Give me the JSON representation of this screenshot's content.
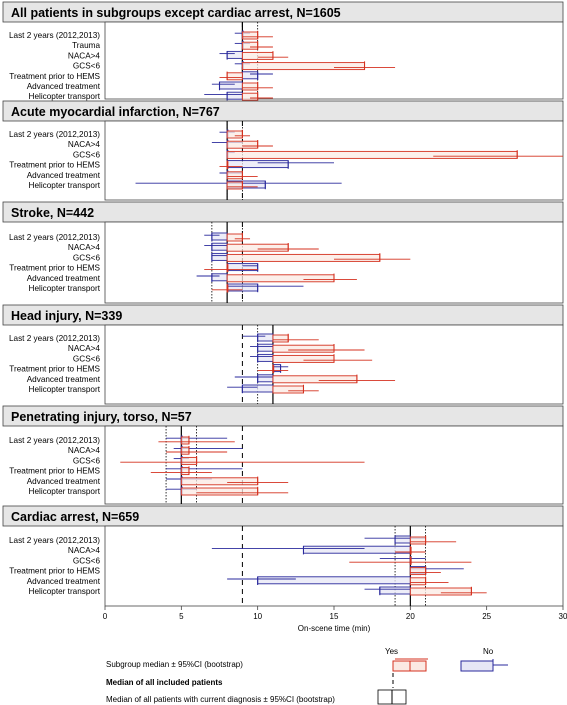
{
  "chart_data": {
    "type": "forest",
    "xlabel": "On-scene time (min)",
    "xlim": [
      0,
      30
    ],
    "xticks": [
      0,
      5,
      10,
      15,
      20,
      25,
      30
    ],
    "overall_median": 9,
    "colors": {
      "yes": "#d4311f",
      "yes_fill": "#fbe9e3",
      "no": "#2a2a9c",
      "no_fill": "#e7e7f6"
    },
    "panels": [
      {
        "title": "All patients in subgroups except cardiac arrest, N=1605",
        "median": 9,
        "ci": [
          9,
          10
        ],
        "rows": [
          {
            "label": "Last 2 years (2012,2013)",
            "yes": {
              "median": 10,
              "lo": 9,
              "hi": 11
            },
            "no": {
              "median": 9,
              "lo": 8.5,
              "hi": 9.5
            }
          },
          {
            "label": "Trauma",
            "yes": {
              "median": 10,
              "lo": 9.5,
              "hi": 11
            },
            "no": {
              "median": 9,
              "lo": 8.5,
              "hi": 9.5
            }
          },
          {
            "label": "NACA>4",
            "yes": {
              "median": 11,
              "lo": 10,
              "hi": 12
            },
            "no": {
              "median": 8,
              "lo": 7.5,
              "hi": 8.5
            }
          },
          {
            "label": "GCS<6",
            "yes": {
              "median": 17,
              "lo": 15,
              "hi": 19
            },
            "no": {
              "median": 9,
              "lo": 8.5,
              "hi": 9.5
            }
          },
          {
            "label": "Treatment prior to HEMS",
            "yes": {
              "median": 8,
              "lo": 7.5,
              "hi": 9
            },
            "no": {
              "median": 10,
              "lo": 9.5,
              "hi": 11
            }
          },
          {
            "label": "Advanced treatment",
            "yes": {
              "median": 10,
              "lo": 9,
              "hi": 11
            },
            "no": {
              "median": 7.5,
              "lo": 7,
              "hi": 8.5
            }
          },
          {
            "label": "Helicopter transport",
            "yes": {
              "median": 10,
              "lo": 9.5,
              "hi": 11
            },
            "no": {
              "median": 8,
              "lo": 6.5,
              "hi": 9
            }
          }
        ]
      },
      {
        "title": "Acute myocardial infarction, N=767",
        "median": 8,
        "ci": [
          8,
          9
        ],
        "rows": [
          {
            "label": "Last 2 years (2012,2013)",
            "yes": {
              "median": 9,
              "lo": 8.5,
              "hi": 9.5
            },
            "no": {
              "median": 8,
              "lo": 7.5,
              "hi": 8.5
            }
          },
          {
            "label": "NACA>4",
            "yes": {
              "median": 10,
              "lo": 9,
              "hi": 11
            },
            "no": {
              "median": 8,
              "lo": 7,
              "hi": 9
            }
          },
          {
            "label": "GCS<6",
            "yes": {
              "median": 27,
              "lo": 21.5,
              "hi": 30
            },
            "no": {
              "median": 8,
              "lo": 8,
              "hi": 8.5
            }
          },
          {
            "label": "Treatment prior to HEMS",
            "yes": {
              "median": 8,
              "lo": 7.5,
              "hi": 9
            },
            "no": {
              "median": 12,
              "lo": 10,
              "hi": 15
            }
          },
          {
            "label": "Advanced treatment",
            "yes": {
              "median": 9,
              "lo": 8,
              "hi": 10
            },
            "no": {
              "median": 8,
              "lo": 7.5,
              "hi": 9
            }
          },
          {
            "label": "Helicopter transport",
            "yes": {
              "median": 9,
              "lo": 8,
              "hi": 10
            },
            "no": {
              "median": 10.5,
              "lo": 2,
              "hi": 15.5
            }
          }
        ]
      },
      {
        "title": "Stroke, N=442",
        "median": 8,
        "ci": [
          7,
          9
        ],
        "rows": [
          {
            "label": "Last 2 years (2012,2013)",
            "yes": {
              "median": 9,
              "lo": 8.5,
              "hi": 9.5
            },
            "no": {
              "median": 7,
              "lo": 6.5,
              "hi": 7.5
            }
          },
          {
            "label": "NACA>4",
            "yes": {
              "median": 12,
              "lo": 10,
              "hi": 14
            },
            "no": {
              "median": 7,
              "lo": 6.5,
              "hi": 8
            }
          },
          {
            "label": "GCS<6",
            "yes": {
              "median": 18,
              "lo": 15,
              "hi": 20
            },
            "no": {
              "median": 7,
              "lo": 7,
              "hi": 8
            }
          },
          {
            "label": "Treatment prior to HEMS",
            "yes": {
              "median": 8,
              "lo": 6.5,
              "hi": 10
            },
            "no": {
              "median": 10,
              "lo": 9,
              "hi": 10
            }
          },
          {
            "label": "Advanced treatment",
            "yes": {
              "median": 15,
              "lo": 13,
              "hi": 16.5
            },
            "no": {
              "median": 7,
              "lo": 6,
              "hi": 7.5
            }
          },
          {
            "label": "Helicopter transport",
            "yes": {
              "median": 8,
              "lo": 7,
              "hi": 9
            },
            "no": {
              "median": 10,
              "lo": 8,
              "hi": 13
            }
          }
        ]
      },
      {
        "title": "Head injury, N=339",
        "median": 11,
        "ci": [
          10,
          11
        ],
        "rows": [
          {
            "label": "Last 2 years (2012,2013)",
            "yes": {
              "median": 12,
              "lo": 11,
              "hi": 14
            },
            "no": {
              "median": 10,
              "lo": 9,
              "hi": 10.5
            }
          },
          {
            "label": "NACA>4",
            "yes": {
              "median": 15,
              "lo": 12,
              "hi": 17
            },
            "no": {
              "median": 10,
              "lo": 9.5,
              "hi": 11
            }
          },
          {
            "label": "GCS<6",
            "yes": {
              "median": 15,
              "lo": 13,
              "hi": 17.5
            },
            "no": {
              "median": 10,
              "lo": 9.5,
              "hi": 11
            }
          },
          {
            "label": "Treatment prior to HEMS",
            "yes": {
              "median": 11,
              "lo": 10,
              "hi": 12
            },
            "no": {
              "median": 11.5,
              "lo": 11,
              "hi": 12
            }
          },
          {
            "label": "Advanced treatment",
            "yes": {
              "median": 16.5,
              "lo": 14,
              "hi": 19
            },
            "no": {
              "median": 10,
              "lo": 8.5,
              "hi": 11
            }
          },
          {
            "label": "Helicopter transport",
            "yes": {
              "median": 13,
              "lo": 12,
              "hi": 14
            },
            "no": {
              "median": 9,
              "lo": 8,
              "hi": 10
            }
          }
        ]
      },
      {
        "title": "Penetrating injury, torso, N=57",
        "median": 5,
        "ci": [
          4,
          6
        ],
        "rows": [
          {
            "label": "Last 2 years (2012,2013)",
            "yes": {
              "median": 5.5,
              "lo": 3.5,
              "hi": 8.5
            },
            "no": {
              "median": 5,
              "lo": 4,
              "hi": 8
            }
          },
          {
            "label": "NACA>4",
            "yes": {
              "median": 5.5,
              "lo": 4,
              "hi": 8
            },
            "no": {
              "median": 5,
              "lo": 4.5,
              "hi": 9
            }
          },
          {
            "label": "GCS<6",
            "yes": {
              "median": 6,
              "lo": 1,
              "hi": 17
            },
            "no": {
              "median": 5,
              "lo": 4.5,
              "hi": 5.5
            }
          },
          {
            "label": "Treatment prior to HEMS",
            "yes": {
              "median": 5.5,
              "lo": 3,
              "hi": 7
            },
            "no": {
              "median": 5,
              "lo": 4,
              "hi": 9
            }
          },
          {
            "label": "Advanced treatment",
            "yes": {
              "median": 10,
              "lo": 8,
              "hi": 12
            },
            "no": {
              "median": 5,
              "lo": 4,
              "hi": 7
            }
          },
          {
            "label": "Helicopter transport",
            "yes": {
              "median": 10,
              "lo": 6,
              "hi": 12
            },
            "no": {
              "median": 5,
              "lo": 4,
              "hi": 6
            }
          }
        ]
      },
      {
        "title": "Cardiac arrest, N=659",
        "median": 20,
        "ci": [
          19,
          21
        ],
        "rows": [
          {
            "label": "Last 2 years (2012,2013)",
            "yes": {
              "median": 21,
              "lo": 20,
              "hi": 23
            },
            "no": {
              "median": 19,
              "lo": 17,
              "hi": 21
            }
          },
          {
            "label": "NACA>4",
            "yes": {
              "median": 20,
              "lo": 19,
              "hi": 21
            },
            "no": {
              "median": 13,
              "lo": 7,
              "hi": 17
            }
          },
          {
            "label": "GCS<6",
            "yes": {
              "median": 20,
              "lo": 16,
              "hi": 24
            },
            "no": {
              "median": 20,
              "lo": 18,
              "hi": 21
            }
          },
          {
            "label": "Treatment prior to HEMS",
            "yes": {
              "median": 21,
              "lo": 20,
              "hi": 22
            },
            "no": {
              "median": 21,
              "lo": 20,
              "hi": 23.5
            }
          },
          {
            "label": "Advanced treatment",
            "yes": {
              "median": 21,
              "lo": 20,
              "hi": 22.5
            },
            "no": {
              "median": 10,
              "lo": 8,
              "hi": 12.5
            }
          },
          {
            "label": "Helicopter transport",
            "yes": {
              "median": 24,
              "lo": 22,
              "hi": 25
            },
            "no": {
              "median": 18,
              "lo": 17,
              "hi": 20
            }
          }
        ]
      }
    ]
  },
  "legend": {
    "yes_label": "Yes",
    "no_label": "No",
    "subgroup_text": "Subgroup median  ± 95%CI (bootstrap)",
    "all_median_text": "Median of all included patients",
    "diag_median_text": "Median of all patients with current diagnosis  ± 95%CI (bootstrap)"
  }
}
